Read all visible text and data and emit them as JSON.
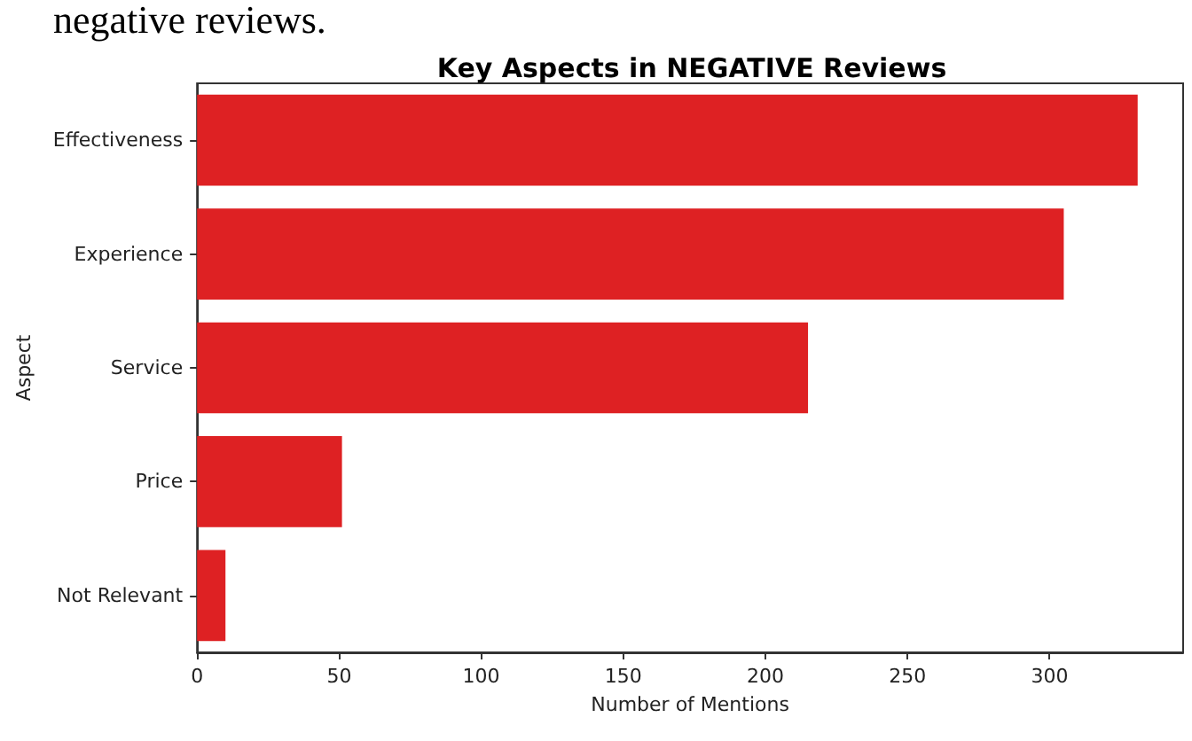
{
  "chart_data": {
    "type": "bar",
    "orientation": "horizontal",
    "title": "Key Aspects in NEGATIVE Reviews",
    "xlabel": "Number of Mentions",
    "ylabel": "Aspect",
    "categories": [
      "Effectiveness",
      "Experience",
      "Service",
      "Price",
      "Not Relevant"
    ],
    "values": [
      331,
      305,
      215,
      51,
      10
    ],
    "color": "#de2123",
    "xlim": [
      0,
      347
    ],
    "xticks": [
      0,
      50,
      100,
      150,
      200,
      250,
      300
    ],
    "grid": false,
    "annotations": [
      "negative reviews."
    ]
  }
}
